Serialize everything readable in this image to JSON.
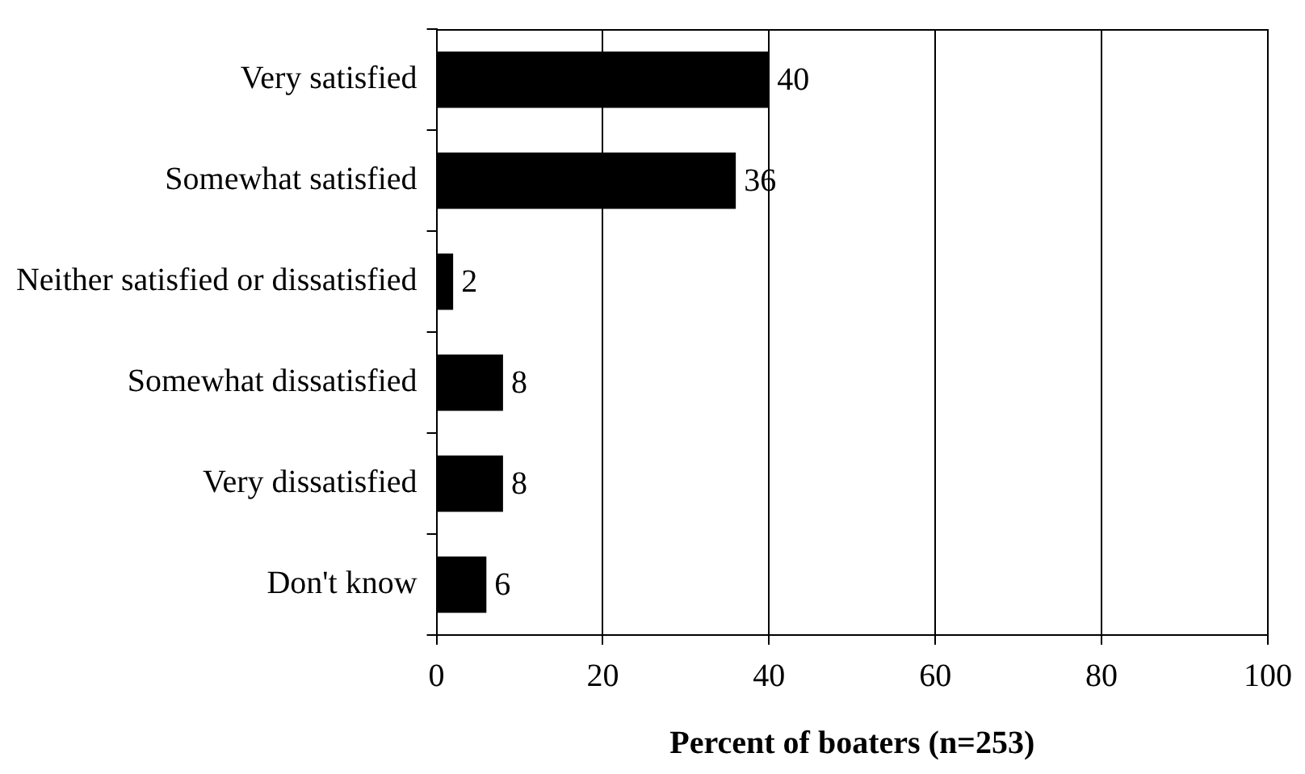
{
  "chart_data": {
    "type": "bar",
    "orientation": "horizontal",
    "xlabel": "Percent of boaters (n=253)",
    "categories": [
      "Very satisfied",
      "Somewhat satisfied",
      "Neither satisfied or dissatisfied",
      "Somewhat dissatisfied",
      "Very dissatisfied",
      "Don't know"
    ],
    "values": [
      40,
      36,
      2,
      8,
      8,
      6
    ],
    "color": "#000000",
    "xlim": [
      0,
      100
    ],
    "xticks": [
      0,
      20,
      40,
      60,
      80,
      100
    ],
    "grid": "x",
    "data_labels": true,
    "legend": false
  }
}
